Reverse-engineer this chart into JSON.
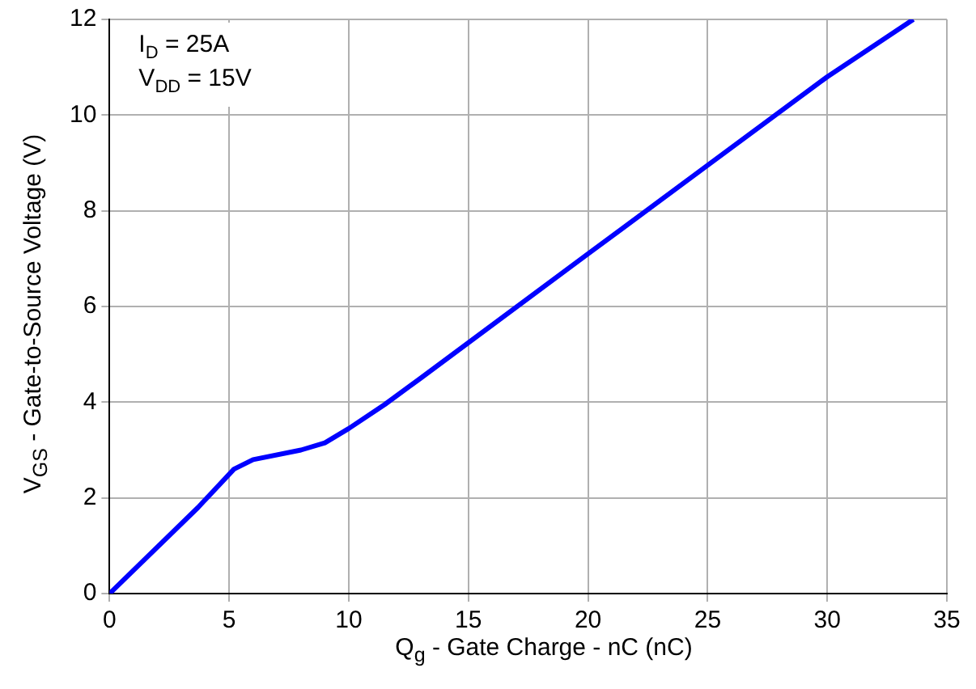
{
  "chart_data": {
    "type": "line",
    "xlabel": "Q$_{g}$ - Gate Charge - nC (nC)",
    "ylabel": "V$_{GS}$ - Gate-to-Source Voltage (V)",
    "annotations": [
      "I$_{D}$ = 25A",
      "V$_{DD}$ = 15V"
    ],
    "x": [
      0,
      3.7,
      5.2,
      6,
      8,
      9,
      10,
      11.5,
      13,
      20,
      25,
      30,
      33.6
    ],
    "series": [
      {
        "color": "#0000ff",
        "values": [
          0,
          1.8,
          2.6,
          2.8,
          3.0,
          3.15,
          3.45,
          3.95,
          4.5,
          7.1,
          8.95,
          10.8,
          12.0
        ]
      }
    ],
    "xlim": [
      0,
      35
    ],
    "xticks": [
      0,
      5,
      10,
      15,
      20,
      25,
      30,
      35
    ],
    "ylim": [
      0,
      12
    ],
    "yticks": [
      0,
      2,
      4,
      6,
      8,
      10,
      12
    ],
    "grid": true,
    "legend": false,
    "marker": "none",
    "line_style": "solid"
  }
}
